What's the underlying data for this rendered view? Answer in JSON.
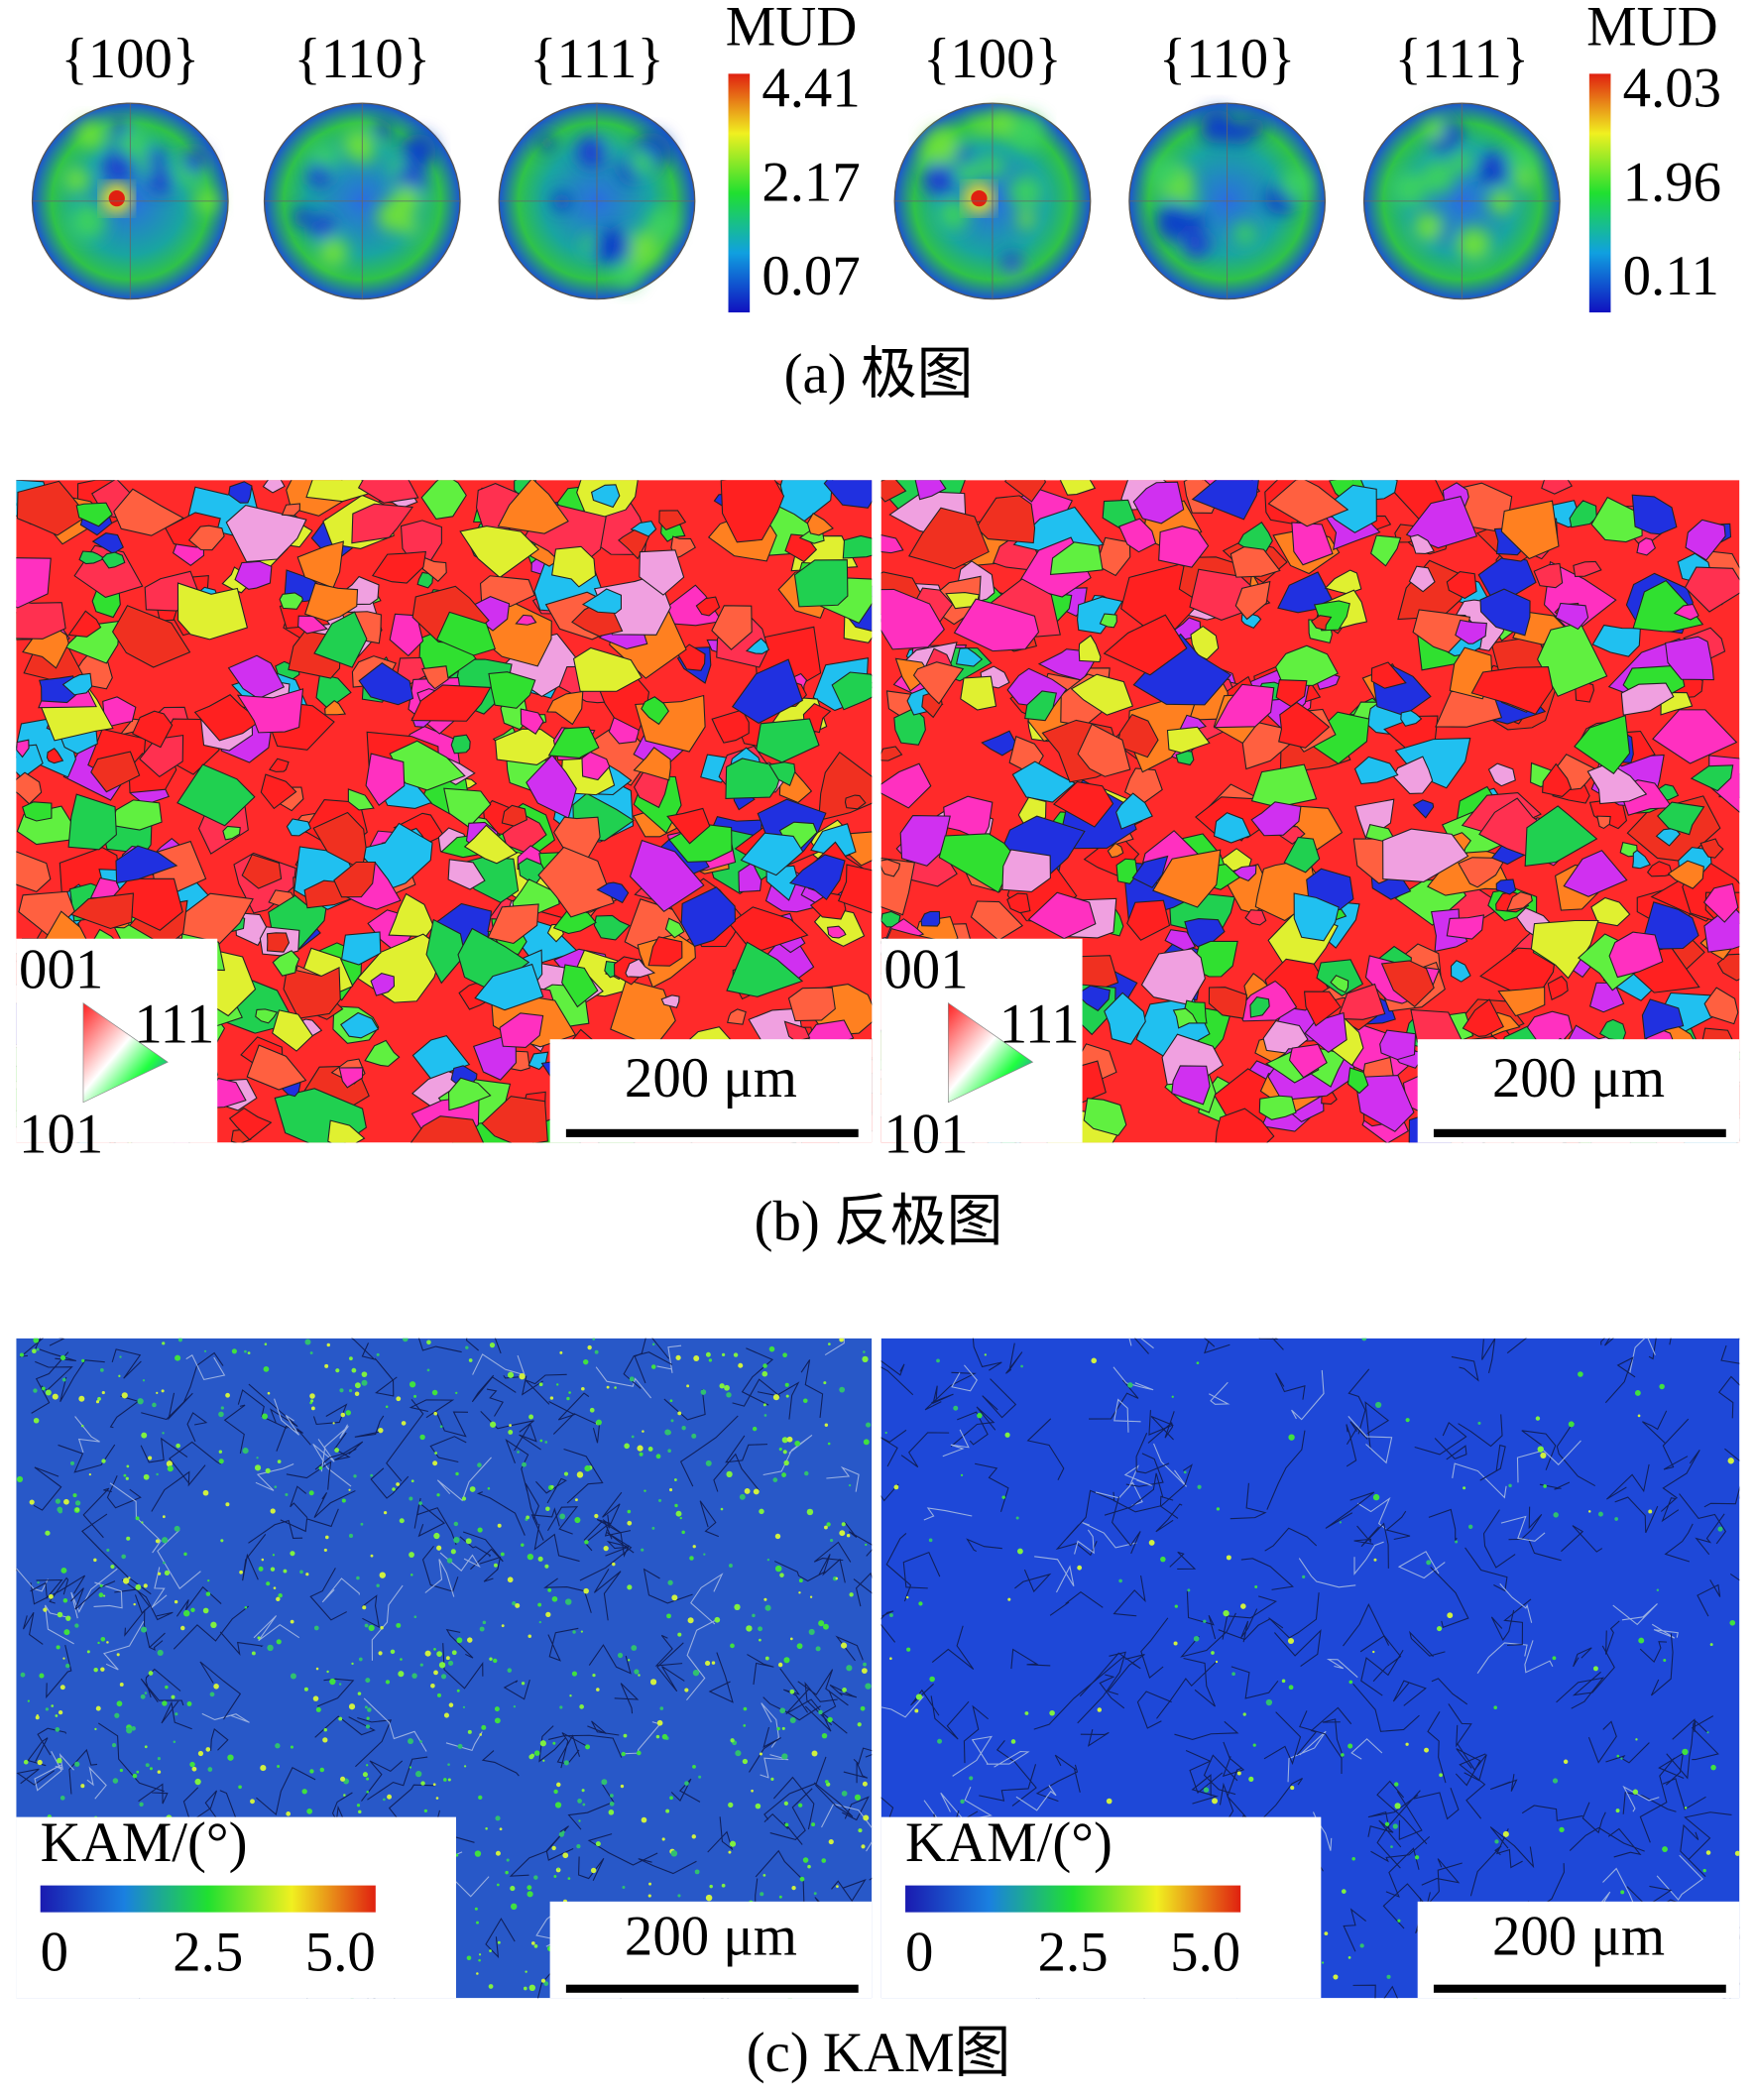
{
  "pole_figures": {
    "caption": "(a) 极图",
    "groups": [
      {
        "planes": [
          "{100}",
          "{110}",
          "{111}"
        ],
        "colorbar": {
          "title": "MUD",
          "max": "4.41",
          "mid": "2.17",
          "min": "0.07"
        }
      },
      {
        "planes": [
          "{100}",
          "{110}",
          "{111}"
        ],
        "colorbar": {
          "title": "MUD",
          "max": "4.03",
          "mid": "1.96",
          "min": "0.11"
        }
      }
    ]
  },
  "ipf_maps": {
    "caption": "(b) 反极图",
    "maps": [
      {
        "legend": {
          "top": "001",
          "right": "111",
          "bottom": "101"
        },
        "scale_bar": "200 μm"
      },
      {
        "legend": {
          "top": "001",
          "right": "111",
          "bottom": "101"
        },
        "scale_bar": "200 μm"
      }
    ]
  },
  "kam_maps": {
    "caption": "(c) KAM图",
    "maps": [
      {
        "legend": {
          "title": "KAM/(°)",
          "ticks": [
            "0",
            "2.5",
            "5.0"
          ]
        },
        "scale_bar": "200 μm"
      },
      {
        "legend": {
          "title": "KAM/(°)",
          "ticks": [
            "0",
            "2.5",
            "5.0"
          ]
        },
        "scale_bar": "200 μm"
      }
    ]
  }
}
